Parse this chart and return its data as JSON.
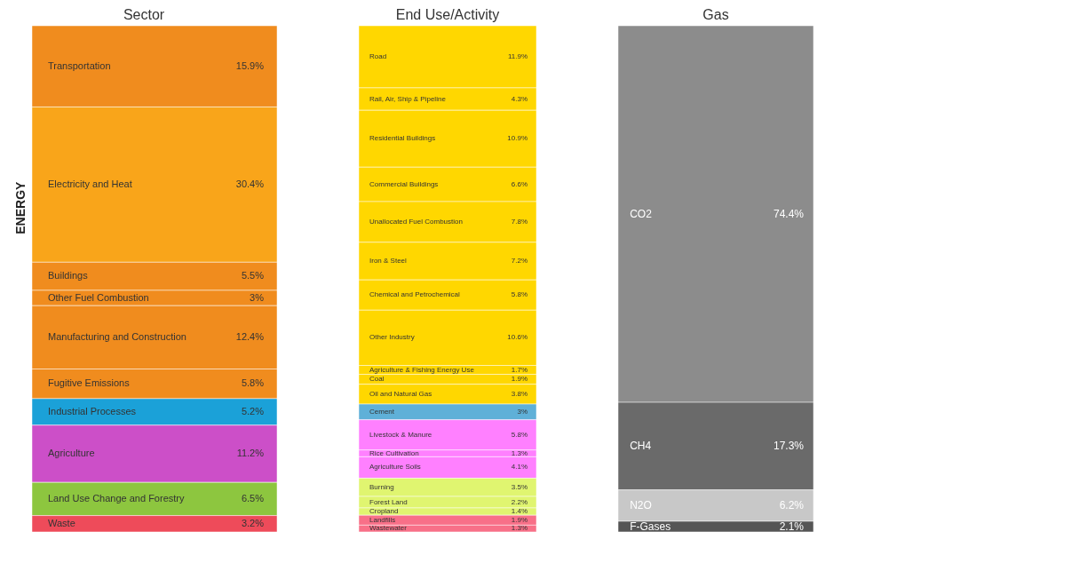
{
  "chart_data": [
    {
      "type": "other",
      "title": "Sector",
      "annotations": [
        "ENERGY"
      ],
      "categories": [
        "Transportation",
        "Electricity and Heat",
        "Buildings",
        "Other Fuel Combustion",
        "Manufacturing and Construction",
        "Fugitive Emissions",
        "Industrial Processes",
        "Agriculture",
        "Land Use Change and Forestry",
        "Waste"
      ],
      "values": [
        15.9,
        30.4,
        5.5,
        3,
        12.4,
        5.8,
        5.2,
        11.2,
        6.5,
        3.2
      ],
      "value_labels": [
        "15.9%",
        "30.4%",
        "5.5%",
        "3%",
        "12.4%",
        "5.8%",
        "5.2%",
        "11.2%",
        "6.5%",
        "3.2%"
      ],
      "colors": [
        "#f08c1e",
        "#f9a51a",
        "#f08c1e",
        "#f08c1e",
        "#f08c1e",
        "#f08c1e",
        "#1ba1d8",
        "#cc4fc8",
        "#8dc63f",
        "#ee4b5a"
      ]
    },
    {
      "type": "other",
      "title": "End Use/Activity",
      "categories": [
        "Road",
        "Rail, Air, Ship & Pipeline",
        "Residential Buildings",
        "Commercial Buildings",
        "Unallocated Fuel Combustion",
        "Iron & Steel",
        "Chemical and Petrochemical",
        "Other Industry",
        "Agriculture & Fishing Energy Use",
        "Coal",
        "Oil and Natural Gas",
        "Cement",
        "Livestock & Manure",
        "Rice Cultivation",
        "Agriculture Soils",
        "Burning",
        "Forest Land",
        "Cropland",
        "Landfills",
        "Wastewater"
      ],
      "values": [
        11.9,
        4.3,
        10.9,
        6.6,
        7.8,
        7.2,
        5.8,
        10.6,
        1.7,
        1.9,
        3.8,
        3,
        5.8,
        1.3,
        4.1,
        3.5,
        2.2,
        1.4,
        1.9,
        1.3
      ],
      "value_labels": [
        "11.9%",
        "4.3%",
        "10.9%",
        "6.6%",
        "7.8%",
        "7.2%",
        "5.8%",
        "10.6%",
        "1.7%",
        "1.9%",
        "3.8%",
        "3%",
        "5.8%",
        "1.3%",
        "4.1%",
        "3.5%",
        "2.2%",
        "1.4%",
        "1.9%",
        "1.3%"
      ],
      "colors": [
        "#ffd700",
        "#ffd700",
        "#ffd700",
        "#ffd700",
        "#ffd700",
        "#ffd700",
        "#ffd700",
        "#ffd700",
        "#ffd700",
        "#ffd700",
        "#ffd700",
        "#5fb0d8",
        "#ff80ff",
        "#ff80ff",
        "#ff80ff",
        "#e0f570",
        "#e0f570",
        "#e0f570",
        "#f87088",
        "#f87088"
      ]
    },
    {
      "type": "other",
      "title": "Gas",
      "categories": [
        "CO2",
        "CH4",
        "N2O",
        "F-Gases"
      ],
      "values": [
        74.4,
        17.3,
        6.2,
        2.1
      ],
      "value_labels": [
        "74.4%",
        "17.3%",
        "6.2%",
        "2.1%"
      ],
      "colors": [
        "#8c8c8c",
        "#6a6a6a",
        "#c8c8c8",
        "#555555"
      ]
    }
  ]
}
